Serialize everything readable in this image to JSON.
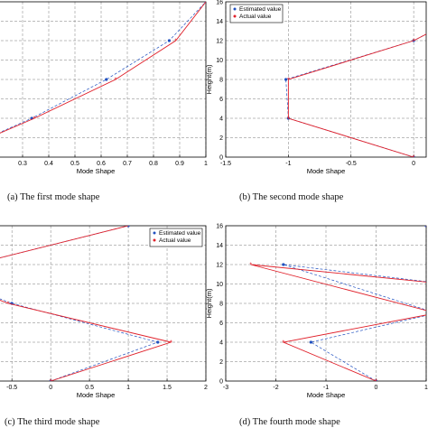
{
  "colors": {
    "estimated": "#2050c0",
    "actual": "#e0202a",
    "grid": "#7a7a7a"
  },
  "chart_data": [
    {
      "type": "line",
      "caption": "(a) The first mode shape",
      "xlabel": "Mode Shape",
      "ylabel": "",
      "xlim": [
        0.2,
        1.0
      ],
      "ylim": [
        0,
        16
      ],
      "xticks": [
        "0.3",
        "0.4",
        "0.5",
        "0.6",
        "0.7",
        "0.8",
        "0.9",
        "1"
      ],
      "yticks": [],
      "legend": null,
      "series": [
        {
          "name": "Estimated value",
          "x": [
            0,
            0.335,
            0.62,
            0.86,
            1.0
          ],
          "y": [
            0,
            4,
            8,
            12,
            16
          ]
        },
        {
          "name": "Actual value",
          "x": [
            0,
            0.345,
            0.655,
            0.885,
            1.0
          ],
          "y": [
            0,
            4,
            8,
            12,
            16
          ]
        }
      ]
    },
    {
      "type": "line",
      "caption": "(b) The second mode shape",
      "xlabel": "Mode Shape",
      "ylabel": "Height(m)",
      "xlim": [
        -1.5,
        0.1
      ],
      "ylim": [
        0,
        16
      ],
      "xticks": [
        "-1.5",
        "-1",
        "-0.5",
        "0"
      ],
      "yticks": [
        "0",
        "2",
        "4",
        "6",
        "8",
        "10",
        "12",
        "14",
        "16"
      ],
      "legend": "top-left",
      "series": [
        {
          "name": "Estimated value",
          "x": [
            0,
            -1.0,
            -1.02,
            0,
            0.6
          ],
          "y": [
            0,
            4,
            8,
            12,
            16
          ]
        },
        {
          "name": "Actual value",
          "x": [
            0,
            -1.0,
            -1.0,
            0,
            0.6
          ],
          "y": [
            0,
            4,
            8,
            12,
            16
          ]
        }
      ]
    },
    {
      "type": "line",
      "caption": "(c) The third mode shape",
      "xlabel": "Mode Shape",
      "ylabel": "",
      "xlim": [
        -0.7,
        2.0
      ],
      "ylim": [
        0,
        16
      ],
      "xticks": [
        "-0.5",
        "0",
        "0.5",
        "1",
        "1.5",
        "2"
      ],
      "yticks": [],
      "legend": "top-right",
      "series": [
        {
          "name": "Estimated value",
          "x": [
            0,
            1.38,
            -0.5,
            -1.5,
            1.0
          ],
          "y": [
            0,
            4,
            8,
            11,
            16
          ]
        },
        {
          "name": "Actual value",
          "x": [
            0,
            1.55,
            -0.55,
            -1.5,
            1.0
          ],
          "y": [
            0,
            4,
            8,
            11,
            16
          ]
        }
      ]
    },
    {
      "type": "line",
      "caption": "(d) The fourth mode shape",
      "xlabel": "Mode Shape",
      "ylabel": "Height(m)",
      "xlim": [
        -3.0,
        1.0
      ],
      "ylim": [
        0,
        16
      ],
      "xticks": [
        "-3",
        "-2",
        "-1",
        "0",
        "1"
      ],
      "yticks": [
        "0",
        "2",
        "4",
        "6",
        "8",
        "10",
        "12",
        "14",
        "16"
      ],
      "legend": null,
      "series": [
        {
          "name": "Estimated value",
          "x": [
            0,
            -1.3,
            1.2,
            -1.85,
            1.4,
            1.0
          ],
          "y": [
            0,
            4,
            7,
            12,
            10,
            16
          ]
        },
        {
          "name": "Actual value",
          "x": [
            0,
            -1.85,
            1.2,
            -2.5,
            1.4,
            1.0
          ],
          "y": [
            0,
            4,
            7,
            12,
            10,
            16
          ]
        }
      ]
    }
  ]
}
